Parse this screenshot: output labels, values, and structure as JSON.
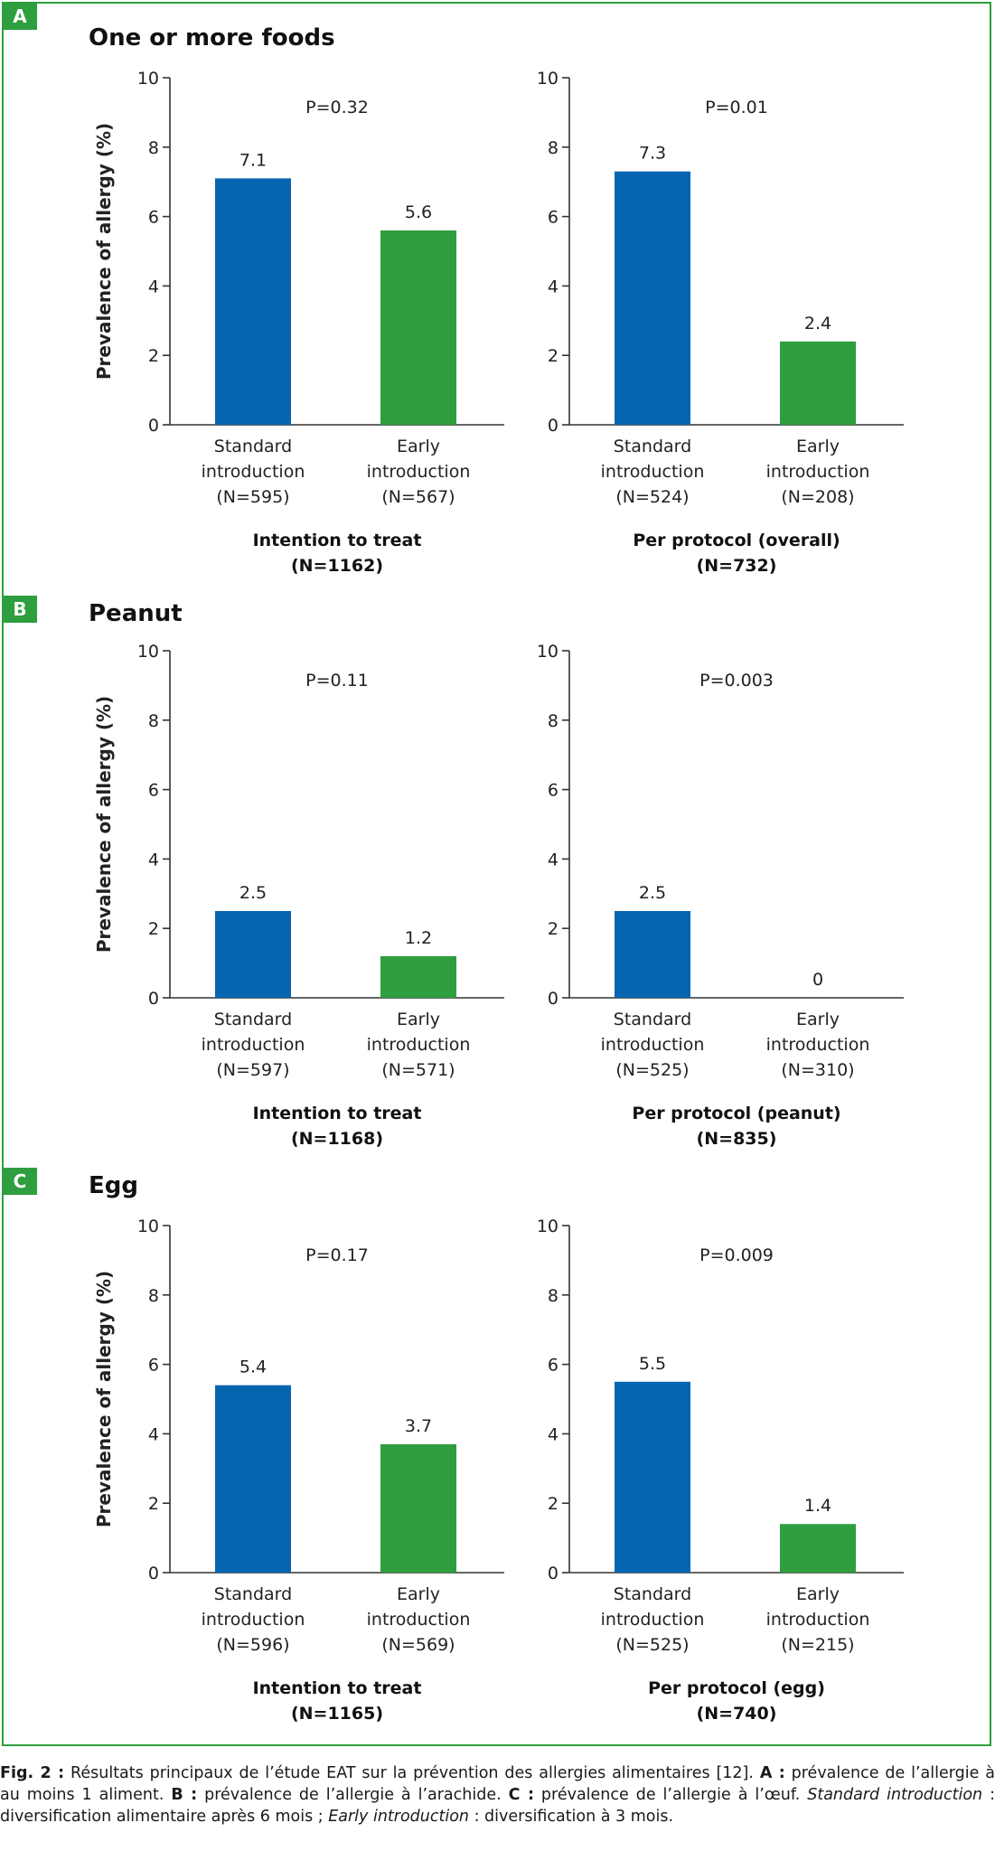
{
  "panels": [
    {
      "letter": "A",
      "title": "One or more foods",
      "ylabel": "Prevalence of allergy (%)",
      "charts": [
        {
          "pvalue": "P=0.32",
          "group_line1": "Intention to treat",
          "group_line2": "(N=1162)"
        },
        {
          "pvalue": "P=0.01",
          "group_line1": "Per protocol (overall)",
          "group_line2": "(N=732)"
        }
      ]
    },
    {
      "letter": "B",
      "title": "Peanut",
      "ylabel": "Prevalence of allergy (%)",
      "charts": [
        {
          "pvalue": "P=0.11",
          "group_line1": "Intention to treat",
          "group_line2": "(N=1168)"
        },
        {
          "pvalue": "P=0.003",
          "group_line1": "Per protocol (peanut)",
          "group_line2": "(N=835)"
        }
      ]
    },
    {
      "letter": "C",
      "title": "Egg",
      "ylabel": "Prevalence of allergy (%)",
      "charts": [
        {
          "pvalue": "P=0.17",
          "group_line1": "Intention to treat",
          "group_line2": "(N=1165)"
        },
        {
          "pvalue": "P=0.009",
          "group_line1": "Per protocol (egg)",
          "group_line2": "(N=740)"
        }
      ]
    }
  ],
  "colors": {
    "standard": "#0765b0",
    "early": "#2e9e3e",
    "frame": "#2e9e3e"
  },
  "caption": {
    "fig": "Fig. 2 :",
    "part1": " Résultats principaux de l’étude EAT sur la prévention des allergies alimentaires [12]. ",
    "a_label": "A :",
    "a_text": " prévalence de l’allergie à au moins 1 aliment. ",
    "b_label": "B :",
    "b_text": " prévalence de l’allergie à l’arachide. ",
    "c_label": "C :",
    "c_text": " prévalence de l’allergie à l’œuf. ",
    "std_term": "Standard introduction",
    "std_text": " : diversification alimentaire après 6 mois ; ",
    "early_term": "Early introduction",
    "early_text": " : diversification à 3 mois."
  },
  "chart_data": [
    {
      "type": "bar",
      "panel": "A",
      "categories": [
        [
          "Standard",
          "introduction",
          "(N=595)"
        ],
        [
          "Early",
          "introduction",
          "(N=567)"
        ]
      ],
      "values": [
        7.1,
        5.6
      ],
      "labels": [
        "7.1",
        "5.6"
      ],
      "ylim": [
        0,
        10
      ],
      "yticks": [
        0,
        2,
        4,
        6,
        8,
        10
      ],
      "ylabel": "Prevalence of allergy (%)"
    },
    {
      "type": "bar",
      "panel": "A",
      "categories": [
        [
          "Standard",
          "introduction",
          "(N=524)"
        ],
        [
          "Early",
          "introduction",
          "(N=208)"
        ]
      ],
      "values": [
        7.3,
        2.4
      ],
      "labels": [
        "7.3",
        "2.4"
      ],
      "ylim": [
        0,
        10
      ],
      "yticks": [
        0,
        2,
        4,
        6,
        8,
        10
      ]
    },
    {
      "type": "bar",
      "panel": "B",
      "categories": [
        [
          "Standard",
          "introduction",
          "(N=597)"
        ],
        [
          "Early",
          "introduction",
          "(N=571)"
        ]
      ],
      "values": [
        2.5,
        1.2
      ],
      "labels": [
        "2.5",
        "1.2"
      ],
      "ylim": [
        0,
        10
      ],
      "yticks": [
        0,
        2,
        4,
        6,
        8,
        10
      ],
      "ylabel": "Prevalence of allergy (%)"
    },
    {
      "type": "bar",
      "panel": "B",
      "categories": [
        [
          "Standard",
          "introduction",
          "(N=525)"
        ],
        [
          "Early",
          "introduction",
          "(N=310)"
        ]
      ],
      "values": [
        2.5,
        0
      ],
      "labels": [
        "2.5",
        "0"
      ],
      "ylim": [
        0,
        10
      ],
      "yticks": [
        0,
        2,
        4,
        6,
        8,
        10
      ]
    },
    {
      "type": "bar",
      "panel": "C",
      "categories": [
        [
          "Standard",
          "introduction",
          "(N=596)"
        ],
        [
          "Early",
          "introduction",
          "(N=569)"
        ]
      ],
      "values": [
        5.4,
        3.7
      ],
      "labels": [
        "5.4",
        "3.7"
      ],
      "ylim": [
        0,
        10
      ],
      "yticks": [
        0,
        2,
        4,
        6,
        8,
        10
      ],
      "ylabel": "Prevalence of allergy (%)"
    },
    {
      "type": "bar",
      "panel": "C",
      "categories": [
        [
          "Standard",
          "introduction",
          "(N=525)"
        ],
        [
          "Early",
          "introduction",
          "(N=215)"
        ]
      ],
      "values": [
        5.5,
        1.4
      ],
      "labels": [
        "5.5",
        "1.4"
      ],
      "ylim": [
        0,
        10
      ],
      "yticks": [
        0,
        2,
        4,
        6,
        8,
        10
      ]
    }
  ]
}
